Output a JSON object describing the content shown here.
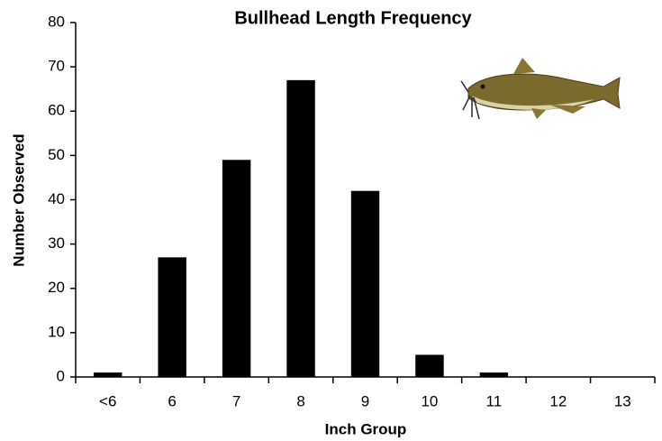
{
  "chart_data": {
    "type": "bar",
    "title": "Bullhead Length Frequency",
    "x_label": "Inch Group",
    "y_label": "Number Observed",
    "categories": [
      "<6",
      "6",
      "7",
      "8",
      "9",
      "10",
      "11",
      "12",
      "13"
    ],
    "values": [
      1,
      27,
      49,
      67,
      42,
      5,
      1,
      0,
      0
    ],
    "color": "#000000",
    "ylim": [
      0,
      80
    ],
    "yticks": [
      0,
      10,
      20,
      30,
      40,
      50,
      60,
      70,
      80
    ],
    "grid": false
  }
}
